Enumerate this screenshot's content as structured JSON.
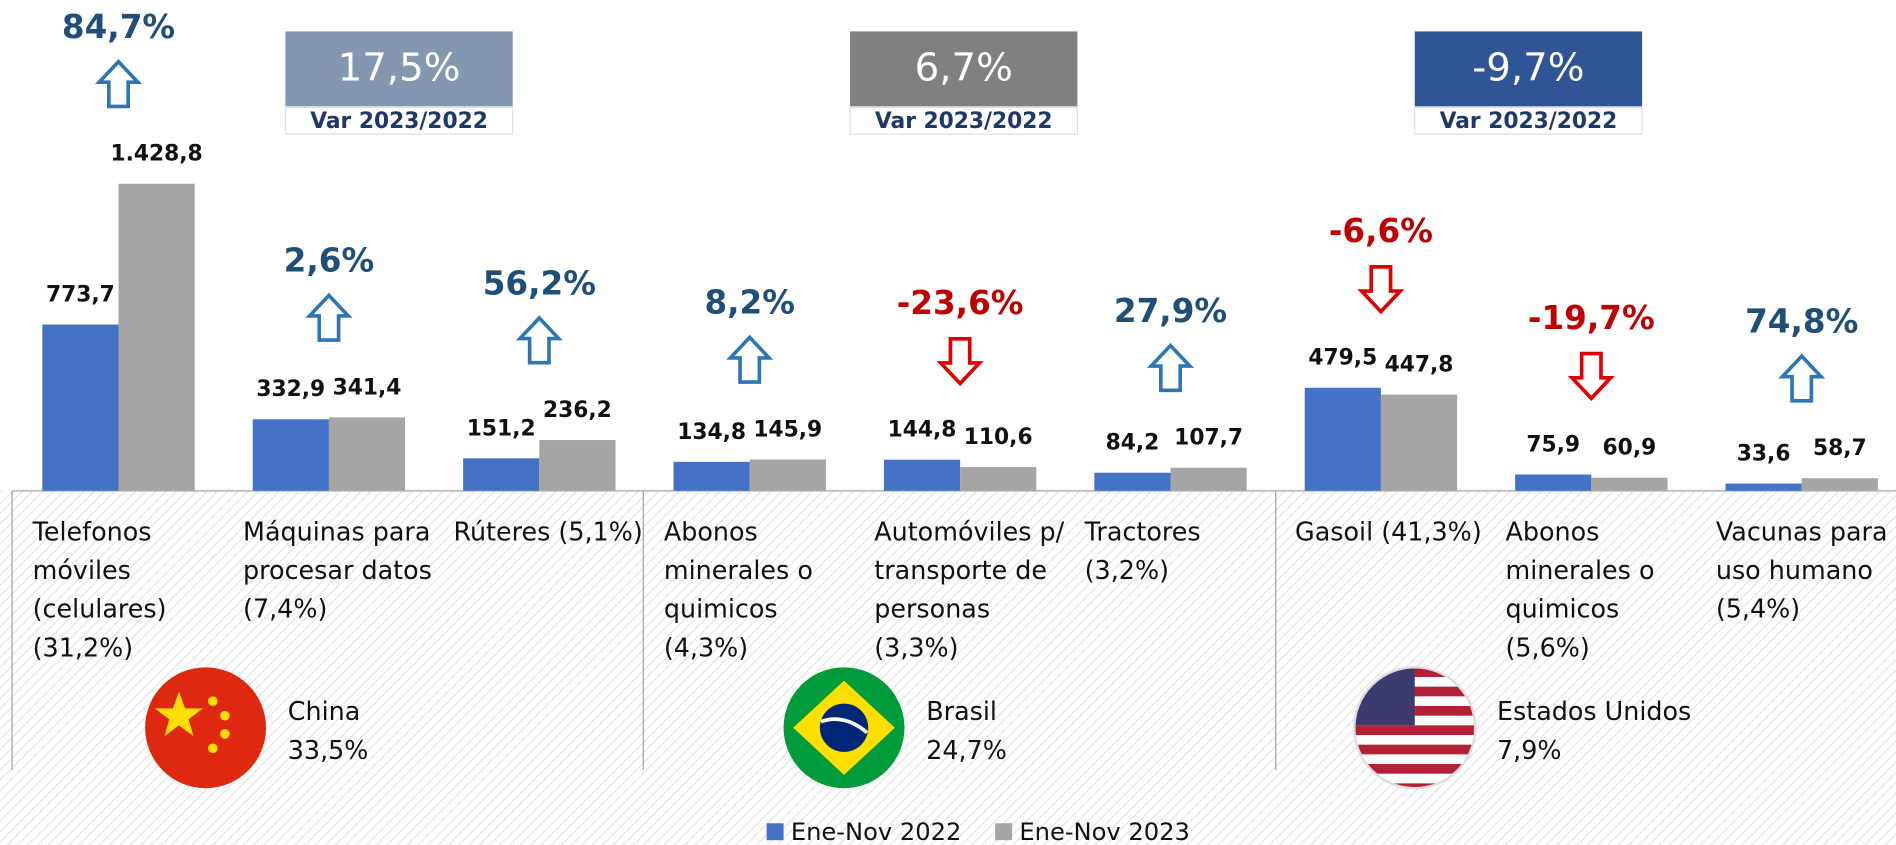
{
  "chart_data": {
    "type": "bar",
    "categories": [
      "Telefonos móviles (celulares) (31,2%)",
      "Máquinas para procesar datos (7,4%)",
      "Rúteres (5,1%)",
      "Abonos minerales o quimicos (4,3%)",
      "Automóviles p/ transporte de personas (3,3%)",
      "Tractores (3,2%)",
      "Gasoil (41,3%)",
      "Abonos minerales o quimicos (5,6%)",
      "Vacunas para uso humano (5,4%)"
    ],
    "series": [
      {
        "name": "Ene-Nov 2022",
        "color": "#4472c4",
        "values": [
          773.7,
          332.9,
          151.2,
          134.8,
          144.8,
          84.2,
          479.5,
          75.9,
          33.6
        ],
        "value_labels": [
          "773,7",
          "332,9",
          "151,2",
          "134,8",
          "144,8",
          "84,2",
          "479,5",
          "75,9",
          "33,6"
        ]
      },
      {
        "name": "Ene-Nov 2023",
        "color": "#a5a5a5",
        "values": [
          1428.8,
          341.4,
          236.2,
          145.9,
          110.6,
          107.7,
          447.8,
          60.9,
          58.7
        ],
        "value_labels": [
          "1.428,8",
          "341,4",
          "236,2",
          "145,9",
          "110,6",
          "107,7",
          "447,8",
          "60,9",
          "58,7"
        ]
      }
    ],
    "changes": [
      84.7,
      2.6,
      56.2,
      8.2,
      -23.6,
      27.9,
      -6.6,
      -19.7,
      74.8
    ],
    "change_labels": [
      "84,7%",
      "2,6%",
      "56,2%",
      "8,2%",
      "-23,6%",
      "27,9%",
      "-6,6%",
      "-19,7%",
      "74,8%"
    ],
    "var_caption": "Var 2023/2022",
    "groups": [
      {
        "name": "China",
        "share": 33.5,
        "share_label": "33,5%",
        "var": 17.5,
        "var_label": "17,5%",
        "color": "#8497b0"
      },
      {
        "name": "Brasil",
        "share": 24.7,
        "share_label": "24,7%",
        "var": 6.7,
        "var_label": "6,7%",
        "color": "#808080"
      },
      {
        "name": "Estados Unidos",
        "share": 7.9,
        "share_label": "7,9%",
        "var": -9.7,
        "var_label": "-9,7%",
        "color": "#2f5597"
      }
    ]
  }
}
